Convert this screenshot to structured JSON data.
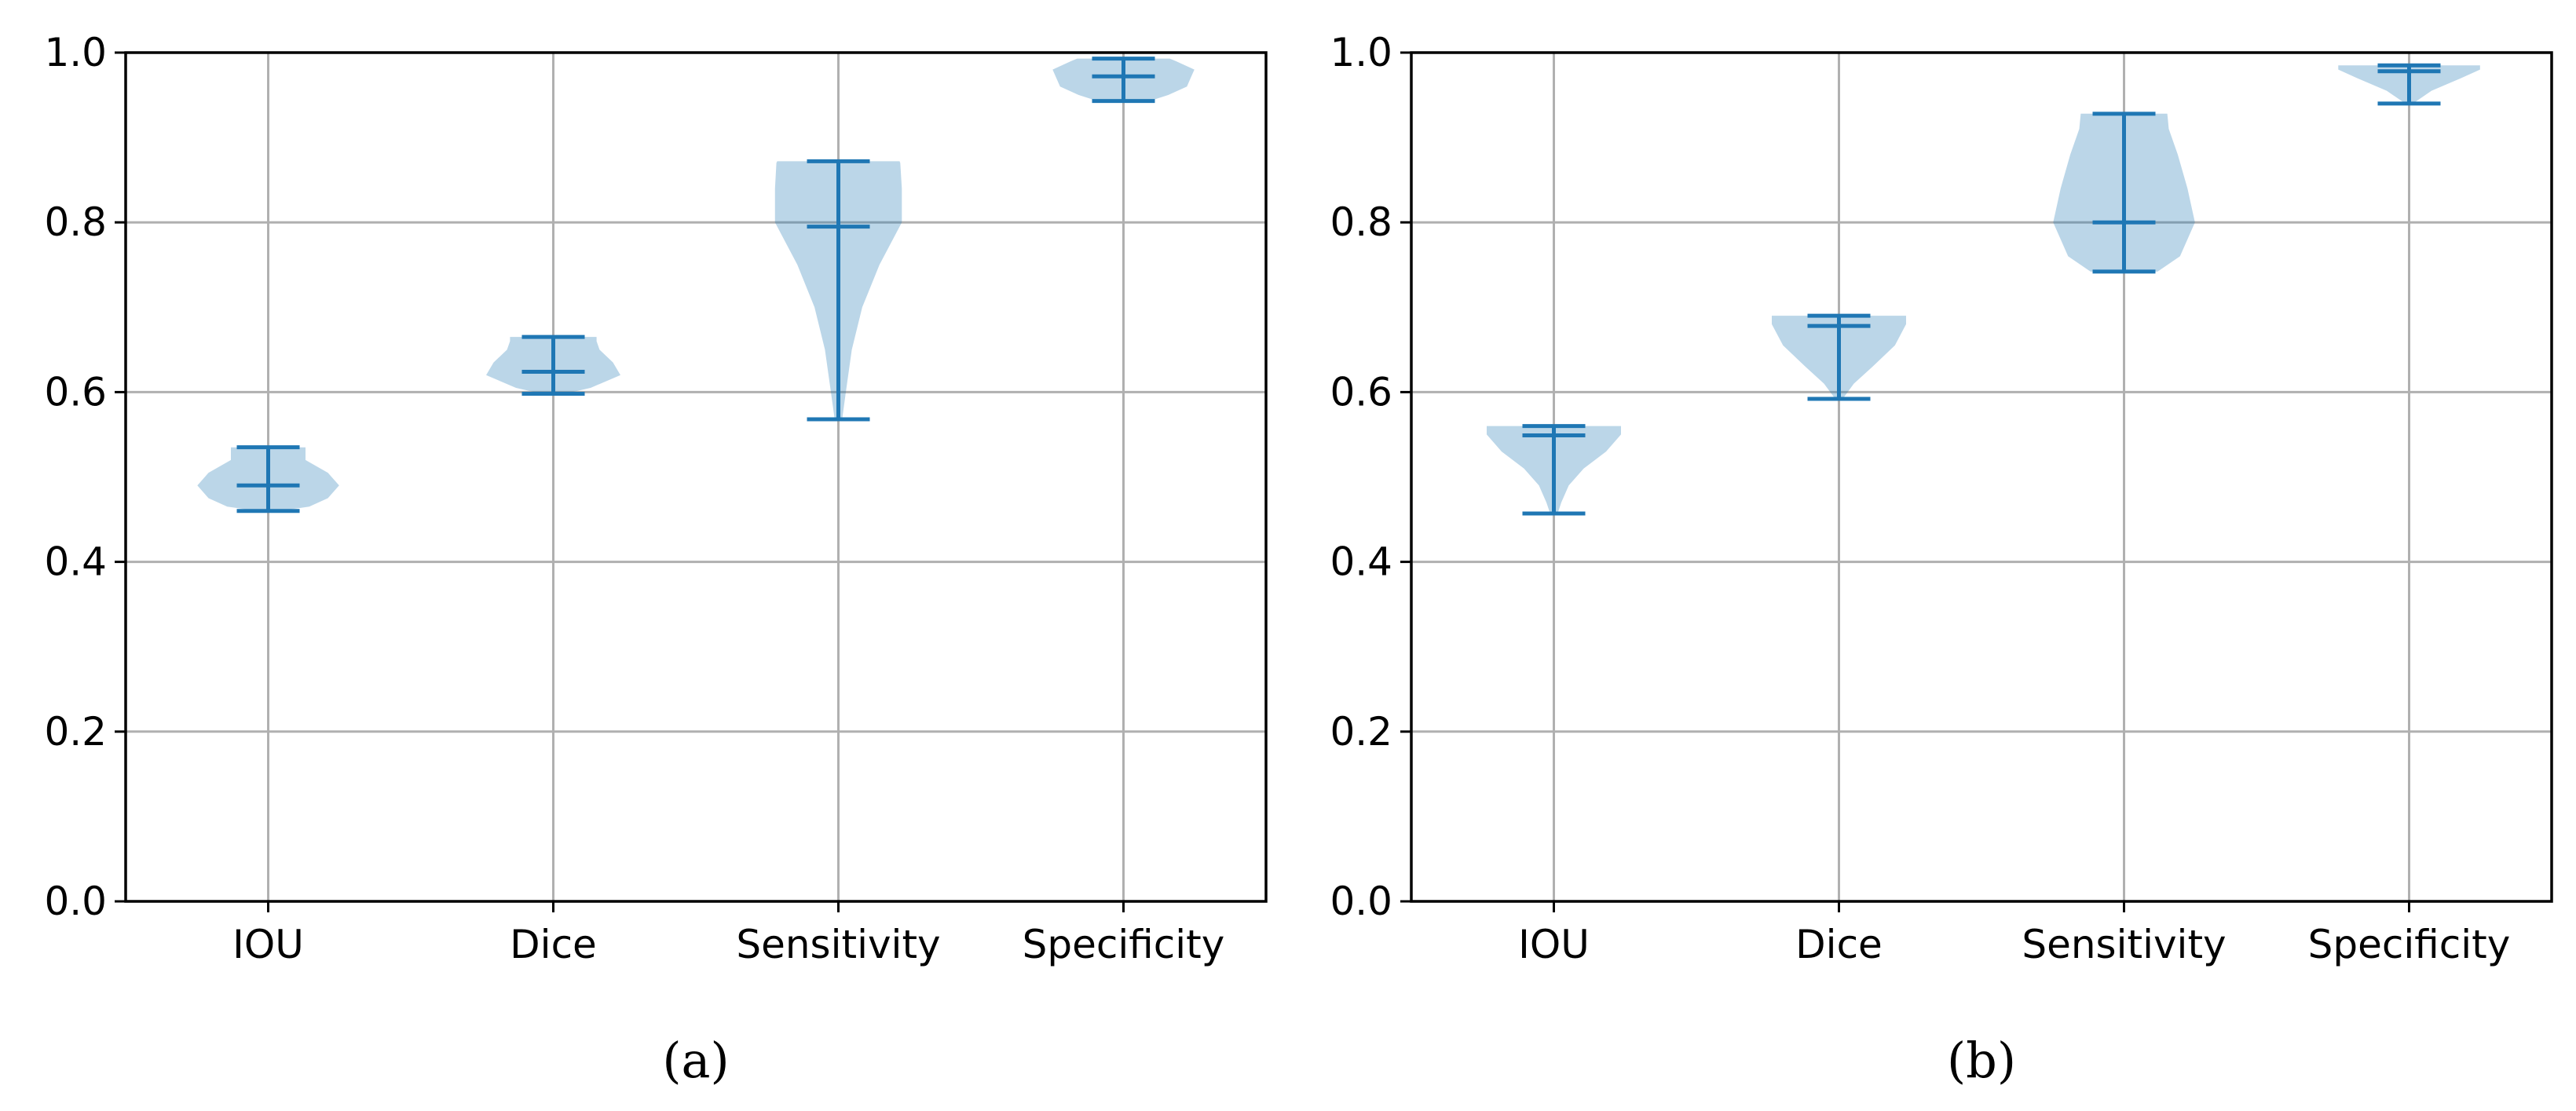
{
  "figure": {
    "panels": [
      "(a)",
      "(b)"
    ]
  },
  "colors": {
    "body": "#1f77b4",
    "body_opacity": 0.3,
    "lines": "#1f77b4",
    "grid": "#b0b0b0",
    "axes": "#000000"
  },
  "chart_data": [
    {
      "type": "violin",
      "caption": "(a)",
      "title": "",
      "xlabel": "",
      "ylabel": "",
      "categories": [
        "IOU",
        "Dice",
        "Sensitivity",
        "Specificity"
      ],
      "ylim": [
        0,
        1
      ],
      "yticks": [
        0.0,
        0.2,
        0.4,
        0.6,
        0.8,
        1.0
      ],
      "ytick_labels": [
        "0.0",
        "0.2",
        "0.4",
        "0.6",
        "0.8",
        "1.0"
      ],
      "grid": true,
      "violins": [
        {
          "name": "IOU",
          "min": 0.46,
          "median": 0.49,
          "max": 0.535,
          "shape": [
            [
              0.46,
              0.14
            ],
            [
              0.465,
              0.55
            ],
            [
              0.475,
              0.8
            ],
            [
              0.49,
              0.95
            ],
            [
              0.505,
              0.8
            ],
            [
              0.52,
              0.5
            ],
            [
              0.53,
              0.5
            ],
            [
              0.535,
              0.5
            ]
          ]
        },
        {
          "name": "Dice",
          "min": 0.598,
          "median": 0.624,
          "max": 0.665,
          "shape": [
            [
              0.598,
              0.15
            ],
            [
              0.605,
              0.5
            ],
            [
              0.62,
              0.9
            ],
            [
              0.635,
              0.8
            ],
            [
              0.65,
              0.62
            ],
            [
              0.66,
              0.58
            ],
            [
              0.665,
              0.58
            ]
          ]
        },
        {
          "name": "Sensitivity",
          "min": 0.568,
          "median": 0.795,
          "max": 0.872,
          "shape": [
            [
              0.568,
              0.05
            ],
            [
              0.6,
              0.1
            ],
            [
              0.65,
              0.18
            ],
            [
              0.7,
              0.32
            ],
            [
              0.75,
              0.55
            ],
            [
              0.8,
              0.85
            ],
            [
              0.84,
              0.85
            ],
            [
              0.87,
              0.83
            ],
            [
              0.872,
              0.82
            ]
          ]
        },
        {
          "name": "Specificity",
          "min": 0.943,
          "median": 0.972,
          "max": 0.993,
          "shape": [
            [
              0.943,
              0.35
            ],
            [
              0.95,
              0.6
            ],
            [
              0.96,
              0.85
            ],
            [
              0.97,
              0.9
            ],
            [
              0.98,
              0.95
            ],
            [
              0.99,
              0.7
            ],
            [
              0.993,
              0.62
            ]
          ]
        }
      ]
    },
    {
      "type": "violin",
      "caption": "(b)",
      "title": "",
      "xlabel": "",
      "ylabel": "",
      "categories": [
        "IOU",
        "Dice",
        "Sensitivity",
        "Specificity"
      ],
      "ylim": [
        0,
        1
      ],
      "yticks": [
        0.0,
        0.2,
        0.4,
        0.6,
        0.8,
        1.0
      ],
      "ytick_labels": [
        "0.0",
        "0.2",
        "0.4",
        "0.6",
        "0.8",
        "1.0"
      ],
      "grid": true,
      "violins": [
        {
          "name": "IOU",
          "min": 0.457,
          "median": 0.549,
          "max": 0.56,
          "shape": [
            [
              0.457,
              0.05
            ],
            [
              0.47,
              0.1
            ],
            [
              0.49,
              0.2
            ],
            [
              0.51,
              0.4
            ],
            [
              0.53,
              0.7
            ],
            [
              0.55,
              0.9
            ],
            [
              0.56,
              0.9
            ]
          ]
        },
        {
          "name": "Dice",
          "min": 0.592,
          "median": 0.678,
          "max": 0.69,
          "shape": [
            [
              0.592,
              0.05
            ],
            [
              0.61,
              0.2
            ],
            [
              0.63,
              0.45
            ],
            [
              0.655,
              0.75
            ],
            [
              0.68,
              0.9
            ],
            [
              0.69,
              0.9
            ]
          ]
        },
        {
          "name": "Sensitivity",
          "min": 0.742,
          "median": 0.8,
          "max": 0.928,
          "shape": [
            [
              0.742,
              0.45
            ],
            [
              0.76,
              0.75
            ],
            [
              0.8,
              0.95
            ],
            [
              0.84,
              0.85
            ],
            [
              0.88,
              0.72
            ],
            [
              0.91,
              0.6
            ],
            [
              0.928,
              0.58
            ]
          ]
        },
        {
          "name": "Specificity",
          "min": 0.94,
          "median": 0.978,
          "max": 0.985,
          "shape": [
            [
              0.94,
              0.05
            ],
            [
              0.955,
              0.3
            ],
            [
              0.97,
              0.7
            ],
            [
              0.98,
              0.95
            ],
            [
              0.985,
              0.95
            ]
          ]
        }
      ]
    }
  ]
}
